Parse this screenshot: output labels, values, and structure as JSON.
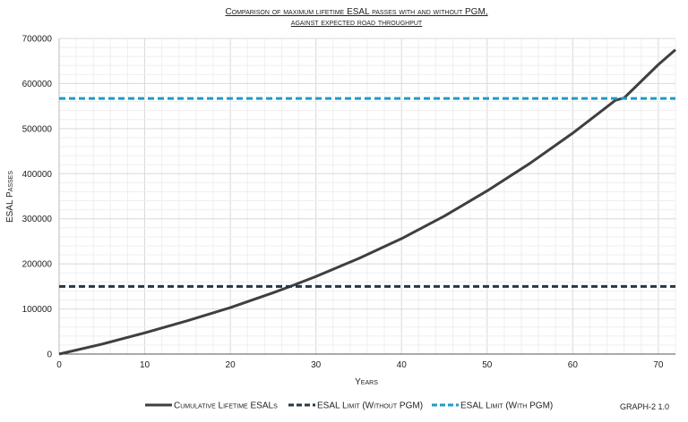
{
  "chart_data": {
    "type": "line",
    "title_line1": "Comparison of maximum lifetime ESAL passes with and without PGM,",
    "title_line2": "against expected road throughput",
    "xlabel": "Years",
    "ylabel": "ESAL Passes",
    "xlim": [
      0,
      72
    ],
    "ylim": [
      0,
      700000
    ],
    "x_ticks": [
      0,
      10,
      20,
      30,
      40,
      50,
      60,
      70
    ],
    "y_ticks": [
      0,
      100000,
      200000,
      300000,
      400000,
      500000,
      600000,
      700000
    ],
    "grid": true,
    "legend_position": "bottom",
    "series": [
      {
        "name": "Cumulative Lifetime ESALs",
        "style": "solid",
        "color": "#3f3f3f",
        "x": [
          0,
          5,
          10,
          15,
          20,
          25,
          27,
          30,
          35,
          40,
          45,
          50,
          55,
          60,
          65,
          66,
          70,
          72
        ],
        "values": [
          0,
          22000,
          47000,
          74000,
          103000,
          136000,
          150000,
          172000,
          212000,
          256000,
          306000,
          362000,
          423000,
          490000,
          563000,
          568000,
          642000,
          675000
        ]
      },
      {
        "name": "ESAL Limit (Without PGM)",
        "style": "dashed",
        "color": "#243746",
        "x": [
          0,
          72
        ],
        "values": [
          150000,
          150000
        ]
      },
      {
        "name": "ESAL Limit (With PGM)",
        "style": "dashed",
        "color": "#1f9bc6",
        "x": [
          0,
          72
        ],
        "values": [
          567000,
          567000
        ]
      }
    ],
    "annotation": "GRAPH-2 1.0"
  }
}
